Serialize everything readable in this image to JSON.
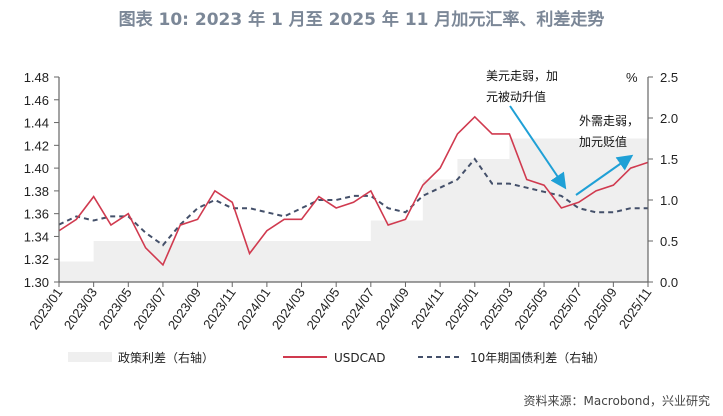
{
  "title": "图表 10: 2023 年 1 月至 2025 年 11 月加元汇率、利差走势",
  "source": "资料来源：Macrobond，兴业研究",
  "chart_data": {
    "type": "line",
    "title": "图表 10: 2023 年 1 月至 2025 年 11 月加元汇率、利差走势",
    "x": [
      "2023/01",
      "2023/02",
      "2023/03",
      "2023/04",
      "2023/05",
      "2023/06",
      "2023/07",
      "2023/08",
      "2023/09",
      "2023/10",
      "2023/11",
      "2023/12",
      "2024/01",
      "2024/02",
      "2024/03",
      "2024/04",
      "2024/05",
      "2024/06",
      "2024/07",
      "2024/08",
      "2024/09",
      "2024/10",
      "2024/11",
      "2024/12",
      "2025/01",
      "2025/02",
      "2025/03",
      "2025/04",
      "2025/05",
      "2025/06",
      "2025/07",
      "2025/08",
      "2025/09",
      "2025/10",
      "2025/11"
    ],
    "x_tick_labels": [
      "2023/01",
      "2023/03",
      "2023/05",
      "2023/07",
      "2023/09",
      "2023/11",
      "2024/01",
      "2024/03",
      "2024/05",
      "2024/07",
      "2024/09",
      "2024/11",
      "2025/01",
      "2025/03",
      "2025/05",
      "2025/07",
      "2025/09",
      "2025/11"
    ],
    "left_axis": {
      "ylim": [
        1.3,
        1.48
      ],
      "ticks": [
        "1.30",
        "1.32",
        "1.34",
        "1.36",
        "1.38",
        "1.40",
        "1.42",
        "1.44",
        "1.46",
        "1.48"
      ]
    },
    "right_axis": {
      "label": "%",
      "ylim": [
        0.0,
        2.5
      ],
      "ticks": [
        "0.0",
        "0.5",
        "1.0",
        "1.5",
        "2.0",
        "2.5"
      ]
    },
    "series": [
      {
        "name": "政策利差（右轴）",
        "axis": "right",
        "type": "step-area",
        "color": "#efefef",
        "values": [
          0.25,
          0.25,
          0.5,
          0.5,
          0.5,
          0.5,
          0.5,
          0.5,
          0.5,
          0.5,
          0.5,
          0.5,
          0.5,
          0.5,
          0.5,
          0.5,
          0.5,
          0.5,
          0.75,
          0.75,
          0.75,
          1.25,
          1.25,
          1.5,
          1.5,
          1.5,
          1.75,
          1.75,
          1.75,
          1.75,
          1.75,
          1.75,
          1.75,
          1.75,
          1.75
        ]
      },
      {
        "name": "USDCAD",
        "axis": "left",
        "type": "line",
        "color": "#d03a4f",
        "values": [
          1.345,
          1.355,
          1.375,
          1.35,
          1.36,
          1.33,
          1.315,
          1.35,
          1.355,
          1.38,
          1.37,
          1.325,
          1.345,
          1.355,
          1.355,
          1.375,
          1.365,
          1.37,
          1.38,
          1.35,
          1.355,
          1.385,
          1.4,
          1.43,
          1.445,
          1.43,
          1.43,
          1.39,
          1.385,
          1.365,
          1.37,
          1.38,
          1.385,
          1.4,
          1.405
        ]
      },
      {
        "name": "10年期国债利差（右轴）",
        "axis": "right",
        "type": "dashed-line",
        "color": "#44506a",
        "values": [
          0.7,
          0.8,
          0.75,
          0.8,
          0.8,
          0.6,
          0.45,
          0.7,
          0.9,
          1.0,
          0.9,
          0.9,
          0.85,
          0.8,
          0.9,
          1.0,
          1.0,
          1.05,
          1.05,
          0.9,
          0.85,
          1.05,
          1.15,
          1.25,
          1.5,
          1.2,
          1.2,
          1.15,
          1.1,
          1.05,
          0.9,
          0.85,
          0.85,
          0.9,
          0.9
        ]
      }
    ],
    "annotations": [
      {
        "lines": [
          "美元走弱，加",
          "元被动升值"
        ],
        "arrow_color": "#1fa0d6"
      },
      {
        "lines": [
          "外需走弱，",
          "加元贬值"
        ],
        "arrow_color": "#1fa0d6"
      }
    ],
    "legend": "bottom",
    "grid": false
  }
}
